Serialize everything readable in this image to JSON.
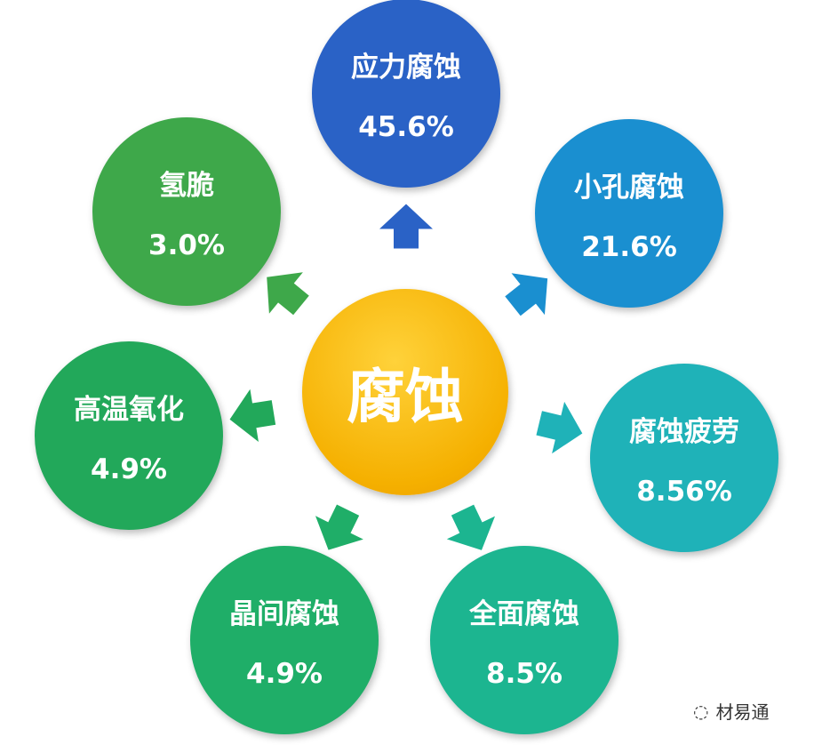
{
  "center": {
    "label": "腐蚀",
    "color": "#f5b400"
  },
  "nodes": [
    {
      "label": "应力腐蚀",
      "value": "45.6%",
      "color": "#2a62c6"
    },
    {
      "label": "小孔腐蚀",
      "value": "21.6%",
      "color": "#1a8fd0"
    },
    {
      "label": "腐蚀疲劳",
      "value": "8.56%",
      "color": "#1fb2b8"
    },
    {
      "label": "全面腐蚀",
      "value": "8.5%",
      "color": "#1cb590"
    },
    {
      "label": "晶间腐蚀",
      "value": "4.9%",
      "color": "#1fae68"
    },
    {
      "label": "高温氧化",
      "value": "4.9%",
      "color": "#22a85a"
    },
    {
      "label": "氢脆",
      "value": "3.0%",
      "color": "#3ea84a"
    }
  ],
  "watermark": "材易通"
}
